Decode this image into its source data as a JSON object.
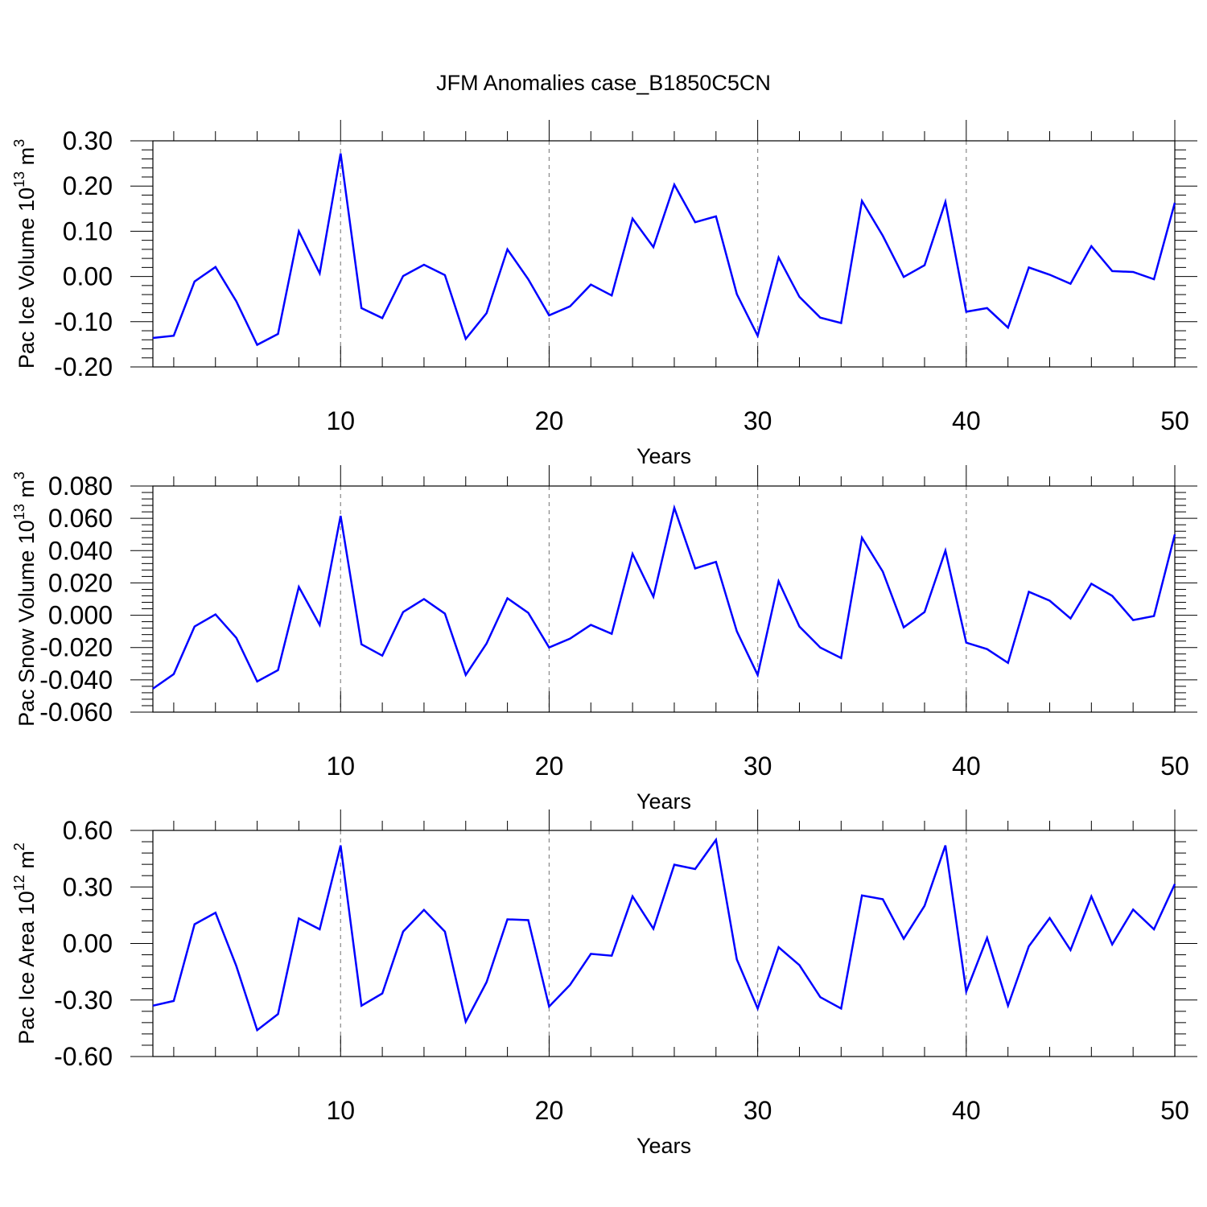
{
  "title": "JFM Anomalies case_B1850C5CN",
  "colors": {
    "line": "#0000ff",
    "axis": "#000000",
    "grid": "#888888"
  },
  "chart_data": [
    {
      "type": "line",
      "xlabel": "Years",
      "ylabel": "Pac Ice Volume 10",
      "ylabel_exp": "13",
      "ylabel_unit": " m",
      "ylabel_unit_exp": "3",
      "xlim": [
        1,
        50
      ],
      "ylim": [
        -0.2,
        0.3
      ],
      "yticks": [
        -0.2,
        -0.1,
        0.0,
        0.1,
        0.2,
        0.3
      ],
      "ytick_labels": [
        "-0.20",
        "-0.10",
        "0.00",
        "0.10",
        "0.20",
        "0.30"
      ],
      "xticks": [
        10,
        20,
        30,
        40,
        50
      ],
      "xtick_labels": [
        "10",
        "20",
        "30",
        "40",
        "50"
      ],
      "grid_x": [
        10,
        20,
        30,
        40
      ],
      "x": [
        1,
        2,
        3,
        4,
        5,
        6,
        7,
        8,
        9,
        10,
        11,
        12,
        13,
        14,
        15,
        16,
        17,
        18,
        19,
        20,
        21,
        22,
        23,
        24,
        25,
        26,
        27,
        28,
        29,
        30,
        31,
        32,
        33,
        34,
        35,
        36,
        37,
        38,
        39,
        40,
        41,
        42,
        43,
        44,
        45,
        46,
        47,
        48,
        49,
        50
      ],
      "y": [
        -0.136,
        -0.131,
        -0.011,
        0.021,
        -0.055,
        -0.151,
        -0.127,
        0.1,
        0.007,
        0.272,
        -0.07,
        -0.092,
        0.001,
        0.026,
        0.003,
        -0.138,
        -0.081,
        0.06,
        -0.006,
        -0.086,
        -0.066,
        -0.018,
        -0.042,
        0.128,
        0.065,
        0.203,
        0.12,
        0.133,
        -0.039,
        -0.131,
        0.042,
        -0.045,
        -0.091,
        -0.103,
        0.167,
        0.09,
        -0.001,
        0.025,
        0.165,
        -0.078,
        -0.07,
        -0.113,
        0.02,
        0.004,
        -0.016,
        0.067,
        0.012,
        0.01,
        -0.006,
        0.163
      ]
    },
    {
      "type": "line",
      "xlabel": "Years",
      "ylabel": "Pac Snow Volume 10",
      "ylabel_exp": "13",
      "ylabel_unit": " m",
      "ylabel_unit_exp": "3",
      "xlim": [
        1,
        50
      ],
      "ylim": [
        -0.06,
        0.08
      ],
      "yticks": [
        -0.06,
        -0.04,
        -0.02,
        0.0,
        0.02,
        0.04,
        0.06,
        0.08
      ],
      "ytick_labels": [
        "-0.060",
        "-0.040",
        "-0.020",
        "0.000",
        "0.020",
        "0.040",
        "0.060",
        "0.080"
      ],
      "xticks": [
        10,
        20,
        30,
        40,
        50
      ],
      "xtick_labels": [
        "10",
        "20",
        "30",
        "40",
        "50"
      ],
      "grid_x": [
        10,
        20,
        30,
        40
      ],
      "x": [
        1,
        2,
        3,
        4,
        5,
        6,
        7,
        8,
        9,
        10,
        11,
        12,
        13,
        14,
        15,
        16,
        17,
        18,
        19,
        20,
        21,
        22,
        23,
        24,
        25,
        26,
        27,
        28,
        29,
        30,
        31,
        32,
        33,
        34,
        35,
        36,
        37,
        38,
        39,
        40,
        41,
        42,
        43,
        44,
        45,
        46,
        47,
        48,
        49,
        50
      ],
      "y": [
        -0.0455,
        -0.0365,
        -0.007,
        0.0005,
        -0.014,
        -0.041,
        -0.034,
        0.0175,
        -0.006,
        0.0615,
        -0.018,
        -0.025,
        0.002,
        0.01,
        0.001,
        -0.037,
        -0.0175,
        0.0105,
        0.0015,
        -0.02,
        -0.0145,
        -0.006,
        -0.0115,
        0.038,
        0.0115,
        0.0665,
        0.029,
        0.033,
        -0.01,
        -0.037,
        0.021,
        -0.007,
        -0.02,
        -0.0265,
        0.048,
        0.027,
        -0.0075,
        0.002,
        0.04,
        -0.017,
        -0.021,
        -0.0295,
        0.0145,
        0.009,
        -0.002,
        0.0195,
        0.012,
        -0.003,
        -0.0005,
        0.05
      ]
    },
    {
      "type": "line",
      "xlabel": "Years",
      "ylabel": "Pac Ice Area 10",
      "ylabel_exp": "12",
      "ylabel_unit": " m",
      "ylabel_unit_exp": "2",
      "xlim": [
        1,
        50
      ],
      "ylim": [
        -0.6,
        0.6
      ],
      "yticks": [
        -0.6,
        -0.3,
        0.0,
        0.3,
        0.6
      ],
      "ytick_labels": [
        "-0.60",
        "-0.30",
        "0.00",
        "0.30",
        "0.60"
      ],
      "xticks": [
        10,
        20,
        30,
        40,
        50
      ],
      "xtick_labels": [
        "10",
        "20",
        "30",
        "40",
        "50"
      ],
      "grid_x": [
        10,
        20,
        30,
        40
      ],
      "x": [
        1,
        2,
        3,
        4,
        5,
        6,
        7,
        8,
        9,
        10,
        11,
        12,
        13,
        14,
        15,
        16,
        17,
        18,
        19,
        20,
        21,
        22,
        23,
        24,
        25,
        26,
        27,
        28,
        29,
        30,
        31,
        32,
        33,
        34,
        35,
        36,
        37,
        38,
        39,
        40,
        41,
        42,
        43,
        44,
        45,
        46,
        47,
        48,
        49,
        50
      ],
      "y": [
        -0.33,
        -0.305,
        0.102,
        0.163,
        -0.12,
        -0.46,
        -0.375,
        0.133,
        0.075,
        0.52,
        -0.33,
        -0.265,
        0.063,
        0.178,
        0.063,
        -0.415,
        -0.205,
        0.128,
        0.124,
        -0.335,
        -0.22,
        -0.055,
        -0.065,
        0.25,
        0.078,
        0.418,
        0.395,
        0.55,
        -0.085,
        -0.345,
        -0.02,
        -0.115,
        -0.285,
        -0.345,
        0.255,
        0.235,
        0.025,
        0.2,
        0.52,
        -0.255,
        0.03,
        -0.33,
        -0.015,
        0.135,
        -0.035,
        0.25,
        -0.005,
        0.18,
        0.075,
        0.315
      ]
    }
  ]
}
